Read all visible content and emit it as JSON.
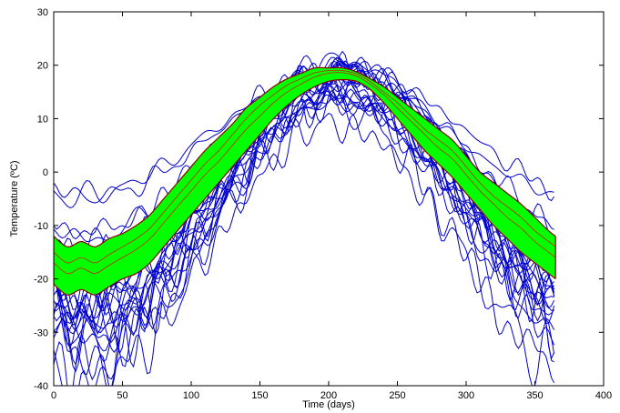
{
  "chart_data": {
    "type": "line",
    "title": "",
    "xlabel": "Time (days)",
    "ylabel": "Temperature (ºC)",
    "xlim": [
      0,
      400
    ],
    "ylim": [
      -40,
      30
    ],
    "xticks": [
      0,
      50,
      100,
      150,
      200,
      250,
      300,
      350,
      400
    ],
    "yticks": [
      -40,
      -30,
      -20,
      -10,
      0,
      10,
      20,
      30
    ],
    "grid": false,
    "legend": "none",
    "day_range": [
      0,
      365
    ],
    "colors": {
      "curves": "#0000cc",
      "band_fill": "#00ff00",
      "band_edge": "#8b0000",
      "band_inner": "#cc2200"
    },
    "band": {
      "x": [
        0,
        10,
        20,
        30,
        40,
        50,
        60,
        70,
        80,
        90,
        100,
        110,
        120,
        130,
        140,
        150,
        160,
        170,
        180,
        190,
        200,
        210,
        220,
        230,
        240,
        250,
        260,
        270,
        280,
        290,
        300,
        310,
        320,
        330,
        340,
        350,
        360,
        365
      ],
      "upper": [
        -12,
        -14,
        -13,
        -14,
        -12.5,
        -11.5,
        -10,
        -8,
        -5,
        -2,
        1,
        4,
        6.5,
        9,
        12,
        14,
        16,
        17.5,
        18.5,
        19.5,
        19.5,
        19.5,
        18.8,
        17.5,
        16,
        14,
        12,
        10,
        8,
        6,
        3,
        0,
        -2,
        -4,
        -6,
        -8.5,
        -11,
        -12
      ],
      "lower": [
        -21,
        -23,
        -22,
        -23,
        -21.5,
        -20,
        -19,
        -17,
        -14,
        -11,
        -8,
        -5,
        -2,
        1,
        4,
        7,
        10,
        12.5,
        14.5,
        16,
        17,
        17.3,
        17,
        15.5,
        13,
        10,
        7,
        4,
        1.5,
        -1,
        -4,
        -7,
        -10,
        -12.5,
        -15,
        -17,
        -19,
        -20
      ],
      "inner": [
        [
          -17,
          -19,
          -18,
          -19,
          -17.5,
          -16,
          -14.5,
          -12.5,
          -9.5,
          -6.5,
          -3.5,
          -0.5,
          2,
          5,
          8,
          10.5,
          13,
          15,
          16.5,
          17.8,
          18.5,
          18.6,
          18,
          16.5,
          14.5,
          12,
          9.5,
          7,
          4.5,
          2.5,
          -0.5,
          -3.5,
          -6,
          -8.5,
          -10.5,
          -13,
          -15,
          -16
        ],
        [
          -15,
          -17,
          -16,
          -17,
          -15.5,
          -14,
          -12.5,
          -10.5,
          -7.5,
          -4.5,
          -1.5,
          1.5,
          4,
          7,
          10,
          12.5,
          14.5,
          16.3,
          17.5,
          18.6,
          19,
          19,
          18.4,
          17,
          15,
          13,
          10.5,
          8,
          6,
          4,
          1,
          -2,
          -4.5,
          -6.5,
          -8.5,
          -11,
          -13,
          -14
        ]
      ]
    },
    "series": [
      {
        "amp": 16.5,
        "mean": 4.0,
        "peak": 205,
        "noise": 1.0,
        "seed": 1
      },
      {
        "amp": 15.5,
        "mean": 4.5,
        "peak": 208,
        "noise": 1.0,
        "seed": 2
      },
      {
        "amp": 12.0,
        "mean": 7.5,
        "peak": 210,
        "noise": 0.8,
        "seed": 3
      },
      {
        "amp": 11.0,
        "mean": 6.5,
        "peak": 200,
        "noise": 0.8,
        "seed": 4
      },
      {
        "amp": 17.0,
        "mean": 2.0,
        "peak": 207,
        "noise": 1.2,
        "seed": 5
      },
      {
        "amp": 18.0,
        "mean": 1.5,
        "peak": 210,
        "noise": 1.2,
        "seed": 6
      },
      {
        "amp": 19.0,
        "mean": 0.5,
        "peak": 212,
        "noise": 1.4,
        "seed": 7
      },
      {
        "amp": 19.5,
        "mean": -0.5,
        "peak": 205,
        "noise": 1.4,
        "seed": 8
      },
      {
        "amp": 20.0,
        "mean": -1.5,
        "peak": 208,
        "noise": 1.5,
        "seed": 9
      },
      {
        "amp": 21.0,
        "mean": -2.5,
        "peak": 210,
        "noise": 1.6,
        "seed": 10
      },
      {
        "amp": 22.0,
        "mean": -3.5,
        "peak": 205,
        "noise": 1.6,
        "seed": 11
      },
      {
        "amp": 22.0,
        "mean": -4.5,
        "peak": 212,
        "noise": 1.8,
        "seed": 12
      },
      {
        "amp": 23.0,
        "mean": -5.0,
        "peak": 215,
        "noise": 1.8,
        "seed": 13
      },
      {
        "amp": 24.0,
        "mean": -5.5,
        "peak": 208,
        "noise": 2.0,
        "seed": 14
      },
      {
        "amp": 20.0,
        "mean": -4.0,
        "peak": 200,
        "noise": 1.6,
        "seed": 15
      },
      {
        "amp": 18.0,
        "mean": -2.0,
        "peak": 195,
        "noise": 1.4,
        "seed": 16
      },
      {
        "amp": 21.0,
        "mean": -6.0,
        "peak": 205,
        "noise": 1.8,
        "seed": 17
      },
      {
        "amp": 22.0,
        "mean": -8.0,
        "peak": 205,
        "noise": 2.0,
        "seed": 18
      },
      {
        "amp": 23.0,
        "mean": -8.5,
        "peak": 210,
        "noise": 2.0,
        "seed": 19
      },
      {
        "amp": 24.0,
        "mean": -10.0,
        "peak": 210,
        "noise": 2.0,
        "seed": 20
      },
      {
        "amp": 25.0,
        "mean": -12.0,
        "peak": 200,
        "noise": 2.2,
        "seed": 21
      },
      {
        "amp": 24.0,
        "mean": -15.0,
        "peak": 205,
        "noise": 2.0,
        "seed": 22
      },
      {
        "amp": 21.0,
        "mean": -7.0,
        "peak": 215,
        "noise": 1.6,
        "seed": 23
      },
      {
        "amp": 19.0,
        "mean": -4.0,
        "peak": 200,
        "noise": 1.4,
        "seed": 24
      },
      {
        "amp": 25.5,
        "mean": -7.0,
        "peak": 210,
        "noise": 2.2,
        "seed": 25
      },
      {
        "amp": 20.0,
        "mean": -7.0,
        "peak": 205,
        "noise": 1.6,
        "seed": 26
      },
      {
        "amp": 17.0,
        "mean": -3.0,
        "peak": 212,
        "noise": 1.2,
        "seed": 27
      },
      {
        "amp": 23.5,
        "mean": -3.0,
        "peak": 210,
        "noise": 1.8,
        "seed": 28
      }
    ]
  }
}
